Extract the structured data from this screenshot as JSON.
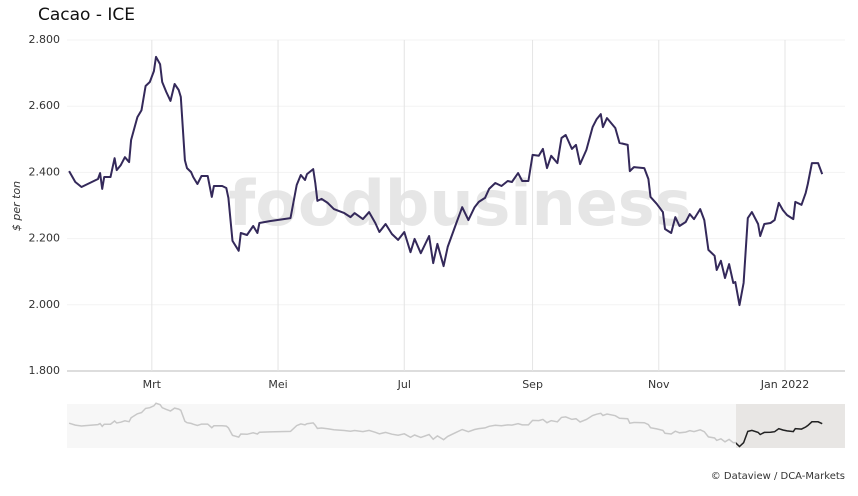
{
  "chart_data": {
    "type": "line",
    "title": "Cacao - ICE",
    "ylabel": "$ per ton",
    "watermark": "foodbusiness",
    "credit": "© Dataview / DCA-Markets",
    "color": "#34295a",
    "navigator_color": "#c8c8c8",
    "navigator_selected_color": "#222222",
    "xgrid": true,
    "xlim": [
      0,
      376
    ],
    "xticks": [
      {
        "value": 41,
        "label": "Mrt"
      },
      {
        "value": 102,
        "label": "Mei"
      },
      {
        "value": 163,
        "label": "Jul"
      },
      {
        "value": 225,
        "label": "Sep"
      },
      {
        "value": 286,
        "label": "Nov"
      },
      {
        "value": 347,
        "label": "Jan 2022"
      }
    ],
    "ylim": [
      1800,
      2800
    ],
    "yticks": [
      {
        "value": 1800,
        "label": "1.800"
      },
      {
        "value": 2000,
        "label": "2.000"
      },
      {
        "value": 2200,
        "label": "2.200"
      },
      {
        "value": 2400,
        "label": "2.400"
      },
      {
        "value": 2600,
        "label": "2.600"
      },
      {
        "value": 2800,
        "label": "2.800"
      }
    ],
    "x": [
      1,
      4,
      7,
      9,
      12,
      15,
      16,
      17,
      18,
      21,
      23,
      24,
      26,
      28,
      30,
      31,
      34,
      36,
      38,
      40,
      42,
      43,
      45,
      46,
      48,
      50,
      52,
      54,
      55,
      57,
      58,
      60,
      61,
      63,
      65,
      68,
      70,
      71,
      75,
      77,
      78,
      80,
      83,
      84,
      87,
      90,
      92,
      93,
      98,
      108,
      111,
      113,
      115,
      116,
      119,
      120,
      121,
      123,
      126,
      129,
      134,
      137,
      139,
      143,
      146,
      149,
      151,
      154,
      157,
      160,
      163,
      166,
      168,
      171,
      175,
      177,
      179,
      182,
      184,
      188,
      191,
      194,
      197,
      199,
      202,
      204,
      207,
      210,
      213,
      215,
      218,
      220,
      223,
      225,
      228,
      230,
      232,
      234,
      237,
      239,
      241,
      244,
      246,
      248,
      251,
      254,
      256,
      258,
      259,
      261,
      265,
      267,
      271,
      272,
      274,
      279,
      281,
      282,
      285,
      288,
      289,
      292,
      294,
      296,
      299,
      301,
      303,
      306,
      308,
      310,
      313,
      314,
      316,
      318,
      320,
      322,
      323,
      325,
      327,
      329,
      331,
      334,
      335,
      337,
      340,
      342,
      344,
      346,
      348,
      351,
      352,
      355,
      357,
      358,
      360,
      363,
      365
    ],
    "values": [
      2404,
      2371,
      2356,
      2362,
      2371,
      2380,
      2398,
      2350,
      2386,
      2386,
      2443,
      2407,
      2422,
      2446,
      2431,
      2498,
      2567,
      2588,
      2661,
      2673,
      2706,
      2749,
      2727,
      2673,
      2643,
      2616,
      2667,
      2649,
      2628,
      2437,
      2413,
      2401,
      2386,
      2365,
      2389,
      2389,
      2326,
      2359,
      2359,
      2353,
      2323,
      2193,
      2163,
      2217,
      2211,
      2238,
      2217,
      2247,
      2253,
      2262,
      2362,
      2392,
      2377,
      2395,
      2410,
      2368,
      2314,
      2320,
      2308,
      2289,
      2277,
      2265,
      2277,
      2259,
      2280,
      2247,
      2220,
      2244,
      2214,
      2196,
      2220,
      2159,
      2199,
      2156,
      2208,
      2126,
      2184,
      2117,
      2175,
      2244,
      2295,
      2256,
      2295,
      2311,
      2323,
      2350,
      2368,
      2359,
      2374,
      2371,
      2398,
      2374,
      2374,
      2453,
      2450,
      2471,
      2413,
      2450,
      2428,
      2504,
      2513,
      2471,
      2483,
      2425,
      2468,
      2537,
      2561,
      2576,
      2537,
      2564,
      2534,
      2489,
      2483,
      2404,
      2416,
      2413,
      2380,
      2326,
      2305,
      2280,
      2229,
      2217,
      2265,
      2238,
      2250,
      2274,
      2259,
      2289,
      2256,
      2166,
      2148,
      2105,
      2133,
      2081,
      2123,
      2066,
      2069,
      1999,
      2066,
      2262,
      2280,
      2244,
      2208,
      2244,
      2247,
      2256,
      2308,
      2286,
      2271,
      2259,
      2311,
      2302,
      2338,
      2365,
      2428,
      2428,
      2395
    ]
  }
}
